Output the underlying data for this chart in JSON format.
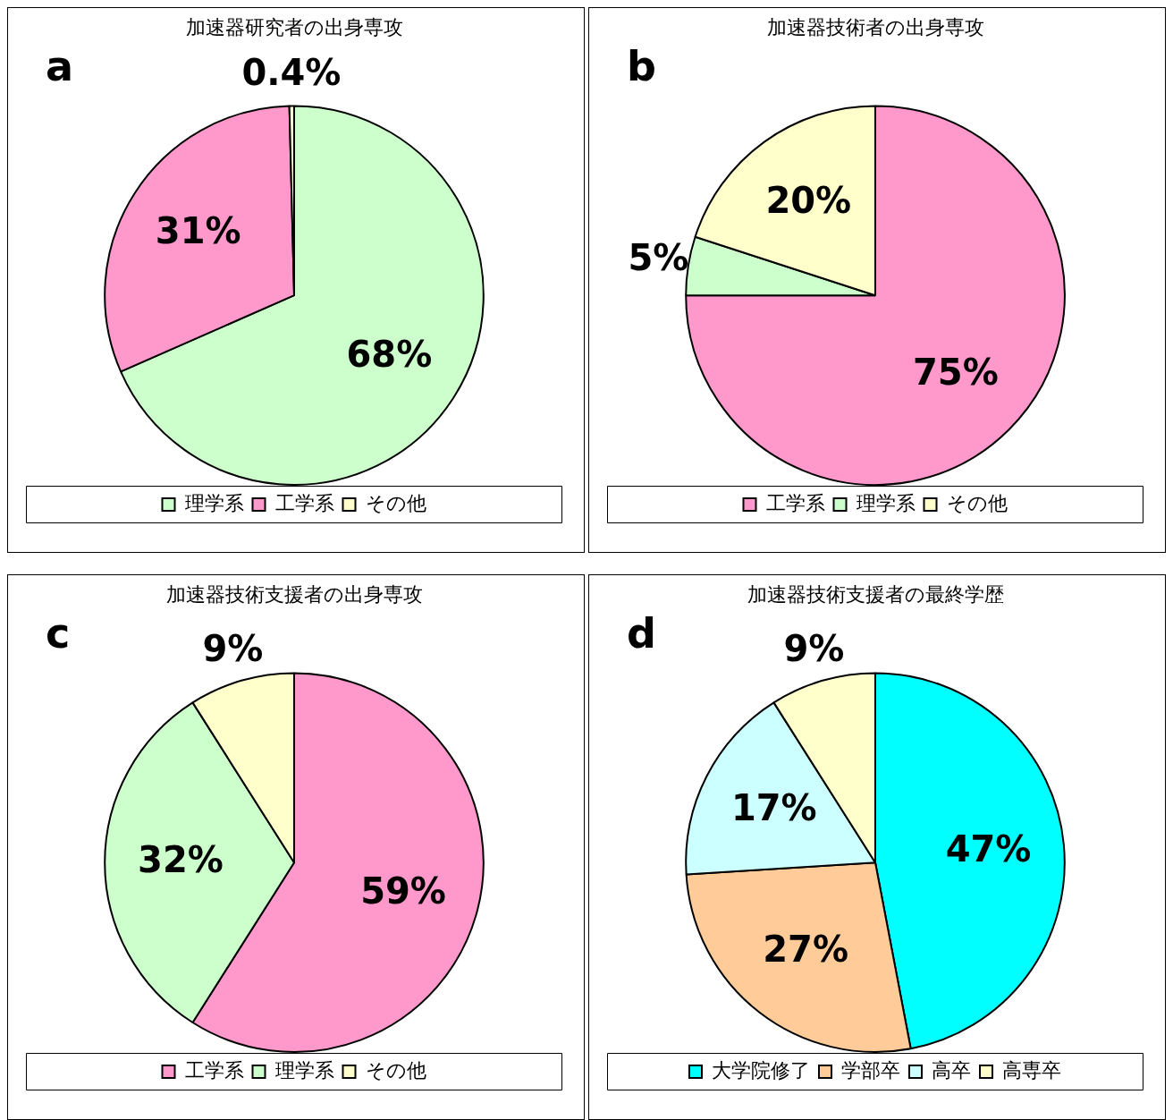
{
  "chart_data": [
    {
      "type": "pie",
      "title": "加速器研究者の出身専攻",
      "annotations": [
        "a"
      ],
      "categories": [
        "理学系",
        "工学系",
        "その他"
      ],
      "values": [
        68,
        31,
        0.4
      ],
      "value_labels": [
        "68%",
        "31%",
        "0.4%"
      ],
      "colors": [
        "#ccffcc",
        "#ff99cc",
        "#ffffcc"
      ],
      "legend": "bottom"
    },
    {
      "type": "pie",
      "title": "加速器技術者の出身専攻",
      "annotations": [
        "b"
      ],
      "categories": [
        "工学系",
        "理学系",
        "その他"
      ],
      "values": [
        75,
        5,
        20
      ],
      "value_labels": [
        "75%",
        "5%",
        "20%"
      ],
      "colors": [
        "#ff99cc",
        "#ccffcc",
        "#ffffcc"
      ],
      "legend": "bottom"
    },
    {
      "type": "pie",
      "title": "加速器技術支援者の出身専攻",
      "annotations": [
        "c"
      ],
      "categories": [
        "工学系",
        "理学系",
        "その他"
      ],
      "values": [
        59,
        32,
        9
      ],
      "value_labels": [
        "59%",
        "32%",
        "9%"
      ],
      "colors": [
        "#ff99cc",
        "#ccffcc",
        "#ffffcc"
      ],
      "legend": "bottom"
    },
    {
      "type": "pie",
      "title": "加速器技術支援者の最終学歴",
      "annotations": [
        "d"
      ],
      "categories": [
        "大学院修了",
        "学部卒",
        "高卒",
        "高専卒"
      ],
      "values": [
        47,
        27,
        17,
        9
      ],
      "value_labels": [
        "47%",
        "27%",
        "17%",
        "9%"
      ],
      "colors": [
        "#00ffff",
        "#ffcc99",
        "#ccffff",
        "#ffffcc"
      ],
      "legend": "bottom"
    }
  ]
}
